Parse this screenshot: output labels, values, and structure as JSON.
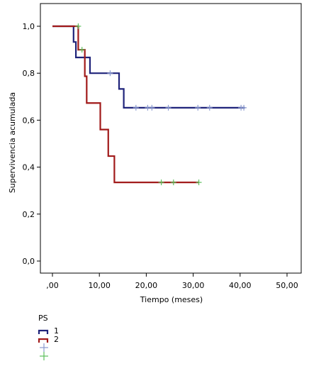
{
  "chart_data": {
    "type": "line",
    "title": "",
    "xlabel": "Tiempo (meses)",
    "ylabel": "Supervivencia acumulada",
    "xlim": [
      0,
      50
    ],
    "ylim": [
      0,
      1.0
    ],
    "x_ticks": [
      {
        "value": 0,
        "label": ",00"
      },
      {
        "value": 10,
        "label": "10,00"
      },
      {
        "value": 20,
        "label": "20,00"
      },
      {
        "value": 30,
        "label": "30,00"
      },
      {
        "value": 40,
        "label": "40,00"
      },
      {
        "value": 50,
        "label": "50,00"
      }
    ],
    "y_ticks": [
      {
        "value": 0.0,
        "label": "0,0"
      },
      {
        "value": 0.2,
        "label": "0,2"
      },
      {
        "value": 0.4,
        "label": "0,4"
      },
      {
        "value": 0.6,
        "label": "0,6"
      },
      {
        "value": 0.8,
        "label": "0,8"
      },
      {
        "value": 1.0,
        "label": "1,0"
      }
    ],
    "grid": false,
    "legend": {
      "title": "PS",
      "placement": "bottom-left",
      "entries": [
        {
          "label": "1",
          "kind": "step",
          "color": "#1f237a"
        },
        {
          "label": "2",
          "kind": "step",
          "color": "#a11a1a"
        },
        {
          "label": "",
          "kind": "censor",
          "color": "#8a9ad0"
        },
        {
          "label": "",
          "kind": "censor",
          "color": "#5cbf5c"
        }
      ]
    },
    "series": [
      {
        "name": "1",
        "color": "#1f237a",
        "censor_color": "#8a9ad0",
        "steps": [
          [
            0,
            1.0
          ],
          [
            4.5,
            0.933
          ],
          [
            5.0,
            0.867
          ],
          [
            8.0,
            0.8
          ],
          [
            14.2,
            0.733
          ],
          [
            15.2,
            0.653
          ],
          [
            41.0,
            0.653
          ]
        ],
        "censored": [
          [
            12.3,
            0.8
          ],
          [
            17.8,
            0.653
          ],
          [
            20.3,
            0.653
          ],
          [
            21.2,
            0.653
          ],
          [
            24.7,
            0.653
          ],
          [
            31.0,
            0.653
          ],
          [
            33.5,
            0.653
          ],
          [
            40.2,
            0.653
          ],
          [
            40.8,
            0.653
          ]
        ]
      },
      {
        "name": "2",
        "color": "#a11a1a",
        "censor_color": "#5cbf5c",
        "steps": [
          [
            0,
            1.0
          ],
          [
            5.5,
            0.9
          ],
          [
            6.9,
            0.787
          ],
          [
            7.3,
            0.673
          ],
          [
            10.2,
            0.56
          ],
          [
            11.9,
            0.447
          ],
          [
            13.2,
            0.335
          ],
          [
            31.2,
            0.335
          ]
        ],
        "censored": [
          [
            5.5,
            1.0
          ],
          [
            6.3,
            0.9
          ],
          [
            23.2,
            0.335
          ],
          [
            25.8,
            0.335
          ],
          [
            31.2,
            0.335
          ]
        ]
      }
    ]
  }
}
